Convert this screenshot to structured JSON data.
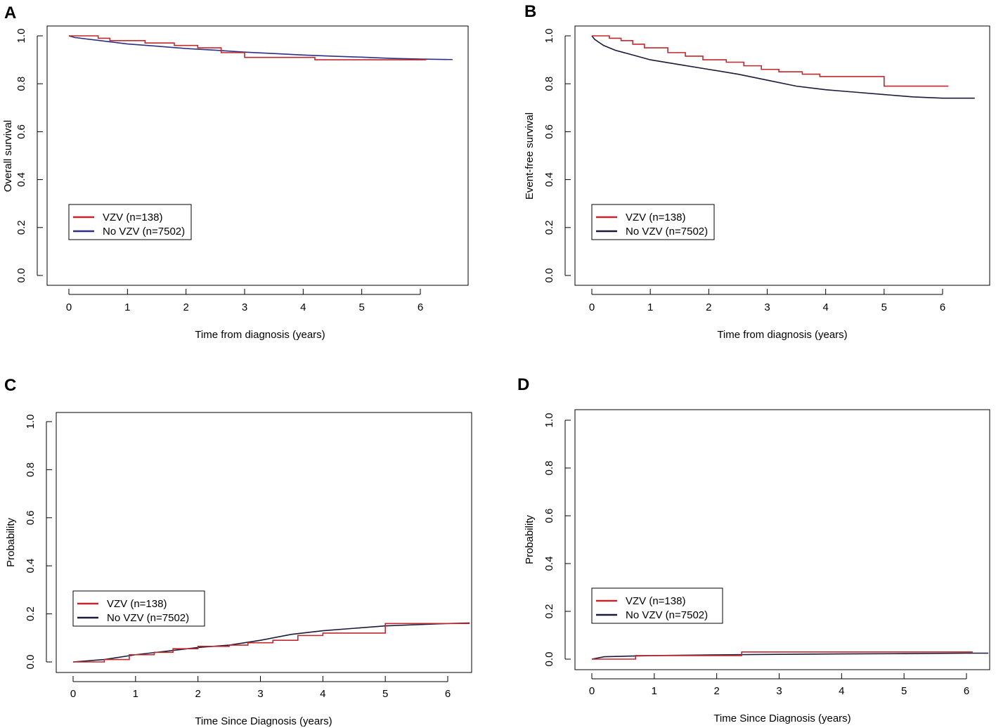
{
  "colors": {
    "vzv": "#c0282d",
    "no_vzv": "#2b2f86",
    "no_vzv_b": "#1a1a3a"
  },
  "chart_data": [
    {
      "panel": "A",
      "type": "line",
      "xlabel": "Time from diagnosis (years)",
      "ylabel": "Overall survival",
      "xlim": [
        0,
        6.6
      ],
      "ylim": [
        0,
        1.0
      ],
      "xticks": [
        "0",
        "1",
        "2",
        "3",
        "4",
        "5",
        "6"
      ],
      "yticks": [
        "0.0",
        "0.2",
        "0.4",
        "0.6",
        "0.8",
        "1.0"
      ],
      "legend": [
        "VZV (n=138)",
        "No VZV (n=7502)"
      ],
      "series": [
        {
          "name": "VZV (n=138)",
          "step": true,
          "x": [
            0,
            0.5,
            0.7,
            1.3,
            1.8,
            2.2,
            2.6,
            3.0,
            4.2,
            6.1
          ],
          "y": [
            1.0,
            0.99,
            0.98,
            0.97,
            0.96,
            0.95,
            0.93,
            0.91,
            0.9,
            0.9
          ]
        },
        {
          "name": "No VZV (n=7502)",
          "step": false,
          "x": [
            0,
            0.1,
            0.5,
            1.0,
            1.5,
            2.0,
            2.5,
            3.0,
            3.5,
            4.0,
            4.5,
            5.0,
            5.5,
            6.0,
            6.55
          ],
          "y": [
            1.0,
            0.993,
            0.981,
            0.966,
            0.957,
            0.947,
            0.94,
            0.932,
            0.926,
            0.92,
            0.915,
            0.911,
            0.906,
            0.903,
            0.901
          ]
        }
      ]
    },
    {
      "panel": "B",
      "type": "line",
      "xlabel": "Time from diagnosis (years)",
      "ylabel": "Event-free survival",
      "xlim": [
        0,
        6.6
      ],
      "ylim": [
        0,
        1.0
      ],
      "xticks": [
        "0",
        "1",
        "2",
        "3",
        "4",
        "5",
        "6"
      ],
      "yticks": [
        "0.0",
        "0.2",
        "0.4",
        "0.6",
        "0.8",
        "1.0"
      ],
      "legend": [
        "VZV (n=138)",
        "No VZV (n=7502)"
      ],
      "series": [
        {
          "name": "VZV (n=138)",
          "step": true,
          "x": [
            0,
            0.3,
            0.5,
            0.7,
            0.9,
            1.3,
            1.6,
            1.9,
            2.3,
            2.6,
            2.9,
            3.2,
            3.6,
            3.9,
            5.0,
            6.1
          ],
          "y": [
            1.0,
            0.99,
            0.98,
            0.965,
            0.95,
            0.93,
            0.915,
            0.9,
            0.89,
            0.875,
            0.86,
            0.85,
            0.84,
            0.83,
            0.79,
            0.79
          ]
        },
        {
          "name": "No VZV (n=7502)",
          "step": false,
          "x": [
            0,
            0.05,
            0.2,
            0.4,
            0.7,
            1.0,
            1.5,
            2.0,
            2.5,
            3.0,
            3.5,
            4.0,
            4.5,
            5.0,
            5.5,
            6.0,
            6.55
          ],
          "y": [
            1.0,
            0.985,
            0.96,
            0.94,
            0.92,
            0.9,
            0.88,
            0.86,
            0.84,
            0.815,
            0.79,
            0.775,
            0.765,
            0.755,
            0.745,
            0.74,
            0.74
          ]
        }
      ]
    },
    {
      "panel": "C",
      "type": "line",
      "xlabel": "Time Since Diagnosis (years)",
      "ylabel": "Probability",
      "xlim": [
        0,
        6.35
      ],
      "ylim": [
        0,
        1.0
      ],
      "xticks": [
        "0",
        "1",
        "2",
        "3",
        "4",
        "5",
        "6"
      ],
      "yticks": [
        "0.0",
        "0.2",
        "0.4",
        "0.6",
        "0.8",
        "1.0"
      ],
      "legend": [
        "VZV (n=138)",
        "No VZV (n=7502)"
      ],
      "series": [
        {
          "name": "VZV (n=138)",
          "step": true,
          "x": [
            0,
            0.5,
            0.9,
            1.3,
            1.6,
            2.0,
            2.5,
            2.8,
            3.2,
            3.6,
            4.0,
            5.0,
            6.35
          ],
          "y": [
            0.0,
            0.01,
            0.03,
            0.04,
            0.055,
            0.065,
            0.07,
            0.08,
            0.09,
            0.11,
            0.12,
            0.16,
            0.16
          ]
        },
        {
          "name": "No VZV (n=7502)",
          "step": false,
          "x": [
            0,
            0.5,
            1.0,
            1.5,
            2.0,
            2.5,
            3.0,
            3.5,
            4.0,
            4.5,
            5.0,
            5.5,
            6.0,
            6.35
          ],
          "y": [
            0.0,
            0.01,
            0.03,
            0.045,
            0.06,
            0.07,
            0.09,
            0.115,
            0.13,
            0.14,
            0.15,
            0.155,
            0.16,
            0.162
          ]
        }
      ]
    },
    {
      "panel": "D",
      "type": "line",
      "xlabel": "Time Since Diagnosis (years)",
      "ylabel": "Probability",
      "xlim": [
        0,
        6.35
      ],
      "ylim": [
        0,
        1.0
      ],
      "xticks": [
        "0",
        "1",
        "2",
        "3",
        "4",
        "5",
        "6"
      ],
      "yticks": [
        "0.0",
        "0.2",
        "0.4",
        "0.6",
        "0.8",
        "1.0"
      ],
      "legend": [
        "VZV (n=138)",
        "No VZV (n=7502)"
      ],
      "series": [
        {
          "name": "VZV (n=138)",
          "step": true,
          "x": [
            0,
            0.2,
            0.7,
            2.4,
            6.1
          ],
          "y": [
            0.0,
            0.0,
            0.015,
            0.03,
            0.03
          ]
        },
        {
          "name": "No VZV (n=7502)",
          "step": false,
          "x": [
            0,
            0.2,
            0.5,
            1.0,
            2.0,
            3.0,
            4.0,
            5.0,
            6.0,
            6.35
          ],
          "y": [
            0.0,
            0.01,
            0.012,
            0.015,
            0.018,
            0.02,
            0.022,
            0.023,
            0.025,
            0.025
          ]
        }
      ]
    }
  ]
}
